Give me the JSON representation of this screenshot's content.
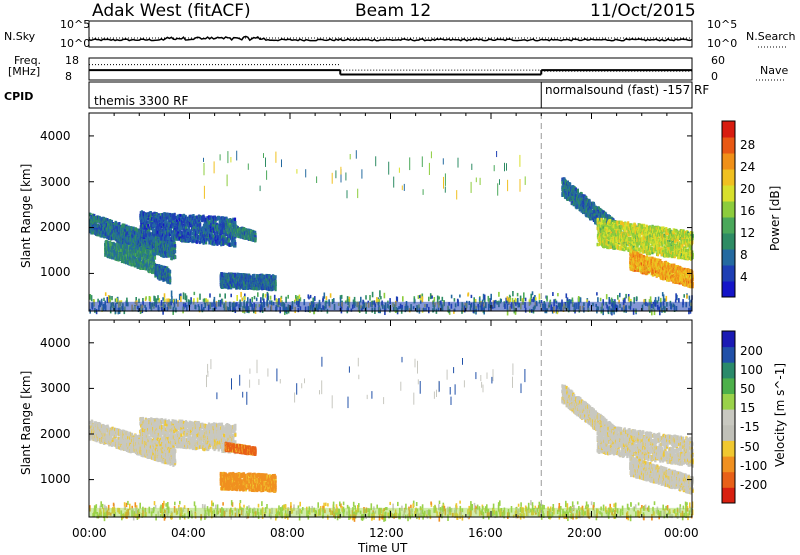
{
  "header": {
    "radar": "Adak West (fitACF)",
    "beam": "Beam 12",
    "date": "11/Oct/2015"
  },
  "strips": {
    "nsky_label": "N.Sky",
    "nsearch_label": "N.Search",
    "nsky_ticks": [
      "10^5",
      "10^0"
    ],
    "nsearch_ticks": [
      "10^5",
      "10^0"
    ],
    "freq_label_line1": "Freq.",
    "freq_label_line2": "[MHz]",
    "freq_ticks": [
      "18",
      "8"
    ],
    "nave_label": "Nave",
    "nave_ticks": [
      "60",
      "0"
    ],
    "cpid_label": "CPID",
    "cpid_left": "themis 3300 RF",
    "cpid_right": "normalsound (fast) -157 RF",
    "cpid_change_time_hours": 18.0,
    "freq_mhz_segments": [
      {
        "start": 0,
        "end": 10,
        "value": 12.5
      },
      {
        "start": 10,
        "end": 18,
        "value": 10.5
      },
      {
        "start": 18,
        "end": 24,
        "value": 12.5
      }
    ],
    "nave_segments": [
      {
        "start": 0,
        "end": 10,
        "value": 42
      },
      {
        "start": 10,
        "end": 18,
        "value": 27
      },
      {
        "start": 18,
        "end": 24,
        "value": 24
      }
    ]
  },
  "chart_data": [
    {
      "type": "heatmap",
      "name": "power",
      "title": "",
      "xlabel": "",
      "ylabel": "Slant Range [km]",
      "ylim": [
        180,
        4500
      ],
      "xlim_hours": [
        0,
        24
      ],
      "y_ticks": [
        "4000",
        "3000",
        "2000",
        "1000"
      ],
      "y_tick_values": [
        4000,
        3000,
        2000,
        1000
      ],
      "colorbar_label": "Power [dB]",
      "colorbar_ticks": [
        "28",
        "24",
        "20",
        "16",
        "12",
        "8",
        "4"
      ],
      "colorbar_tick_values": [
        28,
        24,
        20,
        16,
        12,
        8,
        4
      ],
      "colorbar_range": [
        0,
        32
      ],
      "colorbar_colors": [
        "#1515c8",
        "#1e3fb4",
        "#246aa0",
        "#2e8c64",
        "#4aa85a",
        "#8ccc3c",
        "#d8e02c",
        "#f0c020",
        "#f09018",
        "#e85814",
        "#d81c10"
      ],
      "echo_regions": [
        {
          "t": [
            0.0,
            3.4
          ],
          "r_top": [
            2300,
            1700
          ],
          "r_bottom": [
            1900,
            1300
          ],
          "level": 7
        },
        {
          "t": [
            0.6,
            2.6
          ],
          "r_top": [
            1700,
            1500
          ],
          "r_bottom": [
            1400,
            1000
          ],
          "level": 9
        },
        {
          "t": [
            2.6,
            3.2
          ],
          "r_top": [
            1200,
            1100
          ],
          "r_bottom": [
            900,
            800
          ],
          "level": 6
        },
        {
          "t": [
            2.0,
            5.8
          ],
          "r_top": [
            2350,
            2200
          ],
          "r_bottom": [
            1800,
            1600
          ],
          "level": 5
        },
        {
          "t": [
            5.4,
            6.6
          ],
          "r_top": [
            2100,
            1900
          ],
          "r_bottom": [
            1900,
            1700
          ],
          "level": 8
        },
        {
          "t": [
            5.2,
            7.4
          ],
          "r_top": [
            1000,
            950
          ],
          "r_bottom": [
            700,
            650
          ],
          "level": 6
        },
        {
          "t": [
            18.8,
            21.0
          ],
          "r_top": [
            3100,
            2100
          ],
          "r_bottom": [
            2700,
            1700
          ],
          "level": 7
        },
        {
          "t": [
            20.2,
            24.0
          ],
          "r_top": [
            2200,
            1900
          ],
          "r_bottom": [
            1600,
            1300
          ],
          "level": 18
        },
        {
          "t": [
            21.5,
            24.0
          ],
          "r_top": [
            1500,
            1050
          ],
          "r_bottom": [
            1100,
            700
          ],
          "level": 24
        }
      ],
      "ground_band": {
        "r_bottom": 180,
        "r_top": 600,
        "level": 10
      }
    },
    {
      "type": "heatmap",
      "name": "velocity",
      "title": "",
      "xlabel": "Time UT",
      "ylabel": "Slant Range [km]",
      "ylim": [
        180,
        4500
      ],
      "xlim_hours": [
        0,
        24
      ],
      "x_ticks": [
        "00:00",
        "04:00",
        "08:00",
        "12:00",
        "16:00",
        "20:00",
        "00:00"
      ],
      "x_tick_hours": [
        0,
        4,
        8,
        12,
        16,
        20,
        24
      ],
      "y_ticks": [
        "4000",
        "3000",
        "2000",
        "1000"
      ],
      "y_tick_values": [
        4000,
        3000,
        2000,
        1000
      ],
      "colorbar_label": "Velocity [m s^-1]",
      "colorbar_ticks": [
        "200",
        "100",
        "50",
        "15",
        "-15",
        "-50",
        "-100",
        "-200"
      ],
      "colorbar_tick_values": [
        200,
        100,
        50,
        15,
        -15,
        -50,
        -100,
        -200
      ],
      "colorbar_colors": [
        "#1a1ab4",
        "#2050a8",
        "#2a8a6a",
        "#4cb04a",
        "#9ad24a",
        "#c8c8c0",
        "#c0c0b8",
        "#f0c830",
        "#f09020",
        "#e86018",
        "#d82010"
      ],
      "echo_regions": [
        {
          "t": [
            0.0,
            3.4
          ],
          "r_top": [
            2300,
            1700
          ],
          "r_bottom": [
            1900,
            1300
          ],
          "color": "#c8c8c0"
        },
        {
          "t": [
            2.0,
            5.8
          ],
          "r_top": [
            2350,
            2200
          ],
          "r_bottom": [
            1800,
            1600
          ],
          "color": "#c8c8c0"
        },
        {
          "t": [
            5.4,
            6.6
          ],
          "r_top": [
            1800,
            1700
          ],
          "r_bottom": [
            1650,
            1550
          ],
          "color": "#e86018"
        },
        {
          "t": [
            5.2,
            7.4
          ],
          "r_top": [
            1150,
            1100
          ],
          "r_bottom": [
            800,
            750
          ],
          "color": "#f09020"
        },
        {
          "t": [
            18.8,
            21.0
          ],
          "r_top": [
            3100,
            2100
          ],
          "r_bottom": [
            2700,
            1700
          ],
          "color": "#c8c8c0"
        },
        {
          "t": [
            20.2,
            24.0
          ],
          "r_top": [
            2200,
            1900
          ],
          "r_bottom": [
            1600,
            1300
          ],
          "color": "#c8c8c0"
        },
        {
          "t": [
            21.5,
            24.0
          ],
          "r_top": [
            1500,
            1050
          ],
          "r_bottom": [
            1100,
            700
          ],
          "color": "#c8c8c0"
        }
      ],
      "ground_band": {
        "r_bottom": 180,
        "r_top": 520,
        "color": "#9ad24a"
      }
    }
  ]
}
